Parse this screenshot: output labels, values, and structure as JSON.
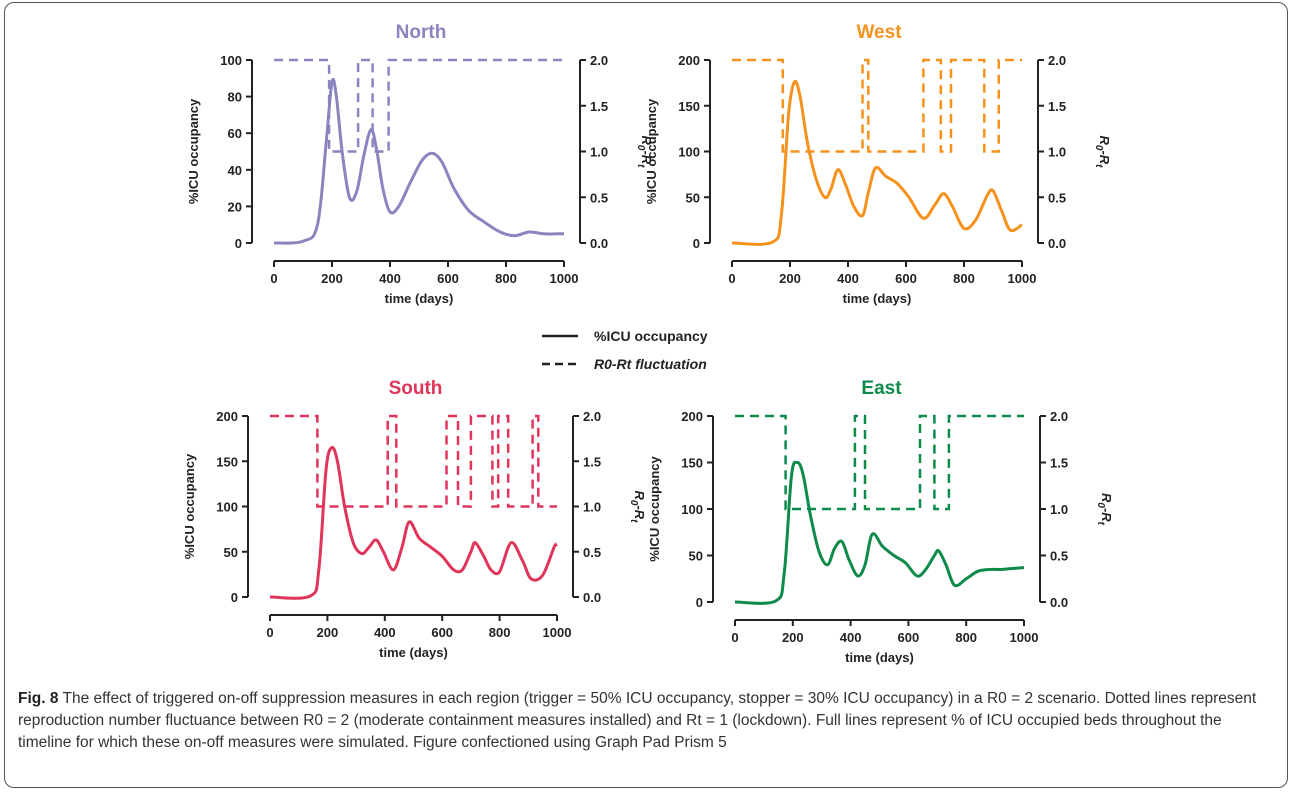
{
  "caption": {
    "figure_label": "Fig. 8",
    "text": "The effect of triggered on-off suppression measures in each region (trigger = 50% ICU occupancy, stopper = 30% ICU occupancy) in a R0 = 2 scenario. Dotted lines represent reproduction number fluctuance between R0 = 2 (moderate containment measures installed) and Rt = 1 (lockdown). Full lines represent % of ICU occupied beds throughout the timeline for which these on-off measures were simulated. Figure confectioned using Graph Pad Prism 5"
  },
  "legend": {
    "solid": "%ICU occupancy",
    "dashed": "R0-Rt fluctuation"
  },
  "chart_data": [
    {
      "type": "line",
      "title": "North",
      "color": "#8a84bf",
      "xlabel": "time (days)",
      "ylabel": "%ICU occupancy",
      "y2label": "R0-Rt",
      "xlim": [
        0,
        1000
      ],
      "ylim": [
        0,
        100
      ],
      "y2lim": [
        0,
        2
      ],
      "xticks": [
        0,
        200,
        400,
        600,
        800,
        1000
      ],
      "yticks": [
        0,
        20,
        40,
        60,
        80,
        100
      ],
      "y2ticks": [
        "0.0",
        "0.5",
        "1.0",
        "1.5",
        "2.0"
      ],
      "series": [
        {
          "axis": "left",
          "style": "solid",
          "x": [
            0,
            100,
            150,
            180,
            200,
            215,
            235,
            260,
            285,
            310,
            335,
            355,
            375,
            400,
            430,
            470,
            510,
            545,
            580,
            620,
            670,
            720,
            780,
            830,
            880,
            930,
            980,
            1000
          ],
          "y": [
            0,
            1,
            10,
            55,
            88,
            80,
            50,
            25,
            28,
            48,
            62,
            50,
            30,
            17,
            20,
            33,
            45,
            49,
            44,
            30,
            18,
            12,
            6,
            4,
            6,
            5,
            5,
            5
          ]
        },
        {
          "axis": "right",
          "style": "dashed",
          "x": [
            0,
            190,
            190,
            290,
            290,
            340,
            340,
            395,
            395,
            1000
          ],
          "y": [
            2,
            2,
            1,
            1,
            2,
            2,
            1,
            1,
            2,
            2
          ]
        }
      ]
    },
    {
      "type": "line",
      "title": "West",
      "color": "#f5921e",
      "xlabel": "time (days)",
      "ylabel": "%ICU occupancy",
      "y2label": "R0-Rt",
      "xlim": [
        0,
        1000
      ],
      "ylim": [
        0,
        200
      ],
      "y2lim": [
        0,
        2
      ],
      "xticks": [
        0,
        200,
        400,
        600,
        800,
        1000
      ],
      "yticks": [
        0,
        50,
        100,
        150,
        200
      ],
      "y2ticks": [
        "0.0",
        "0.5",
        "1.0",
        "1.5",
        "2.0"
      ],
      "series": [
        {
          "axis": "left",
          "style": "solid",
          "x": [
            0,
            140,
            170,
            195,
            215,
            235,
            260,
            290,
            320,
            340,
            365,
            390,
            420,
            450,
            470,
            495,
            530,
            570,
            610,
            660,
            700,
            730,
            760,
            800,
            840,
            880,
            900,
            930,
            960,
            1000
          ],
          "y": [
            0,
            1,
            30,
            140,
            176,
            160,
            110,
            70,
            50,
            58,
            80,
            65,
            40,
            30,
            55,
            82,
            73,
            65,
            50,
            27,
            42,
            54,
            40,
            16,
            25,
            52,
            57,
            35,
            14,
            20
          ]
        },
        {
          "axis": "right",
          "style": "dashed",
          "x": [
            0,
            175,
            175,
            450,
            450,
            470,
            470,
            660,
            660,
            720,
            720,
            755,
            755,
            870,
            870,
            920,
            920,
            1000
          ],
          "y": [
            2,
            2,
            1,
            1,
            2,
            2,
            1,
            1,
            2,
            2,
            1,
            1,
            2,
            2,
            1,
            1,
            2,
            2
          ]
        }
      ]
    },
    {
      "type": "line",
      "title": "South",
      "color": "#e0355b",
      "xlabel": "time (days)",
      "ylabel": "%ICU occupancy",
      "y2label": "R0-Rt",
      "xlim": [
        0,
        1000
      ],
      "ylim": [
        0,
        200
      ],
      "y2lim": [
        0,
        2
      ],
      "xticks": [
        0,
        200,
        400,
        600,
        800,
        1000
      ],
      "yticks": [
        0,
        50,
        100,
        150,
        200
      ],
      "y2ticks": [
        "0.0",
        "0.5",
        "1.0",
        "1.5",
        "2.0"
      ],
      "series": [
        {
          "axis": "left",
          "style": "solid",
          "x": [
            0,
            140,
            170,
            195,
            215,
            235,
            260,
            290,
            320,
            345,
            370,
            395,
            430,
            460,
            485,
            520,
            560,
            600,
            640,
            670,
            700,
            715,
            745,
            770,
            800,
            840,
            880,
            910,
            950,
            990,
            1000
          ],
          "y": [
            0,
            1,
            30,
            140,
            165,
            150,
            100,
            60,
            48,
            55,
            63,
            50,
            30,
            55,
            83,
            65,
            55,
            45,
            30,
            30,
            50,
            60,
            45,
            30,
            28,
            60,
            40,
            20,
            24,
            55,
            58
          ]
        },
        {
          "axis": "right",
          "style": "dashed",
          "x": [
            0,
            165,
            165,
            410,
            410,
            440,
            440,
            615,
            615,
            655,
            655,
            700,
            700,
            775,
            775,
            795,
            795,
            830,
            830,
            915,
            915,
            935,
            935,
            1000
          ],
          "y": [
            2,
            2,
            1,
            1,
            2,
            2,
            1,
            1,
            2,
            2,
            1,
            1,
            2,
            2,
            1,
            1,
            2,
            2,
            1,
            1,
            2,
            2,
            1,
            1
          ]
        }
      ]
    },
    {
      "type": "line",
      "title": "East",
      "color": "#0e8a4b",
      "xlabel": "time (days)",
      "ylabel": "%ICU occupancy",
      "y2label": "R0-Rt",
      "xlim": [
        0,
        1000
      ],
      "ylim": [
        0,
        200
      ],
      "y2lim": [
        0,
        2
      ],
      "xticks": [
        0,
        200,
        400,
        600,
        800,
        1000
      ],
      "yticks": [
        0,
        50,
        100,
        150,
        200
      ],
      "y2ticks": [
        "0.0",
        "0.5",
        "1.0",
        "1.5",
        "2.0"
      ],
      "series": [
        {
          "axis": "left",
          "style": "solid",
          "x": [
            0,
            140,
            170,
            195,
            215,
            235,
            260,
            290,
            320,
            345,
            370,
            395,
            425,
            450,
            475,
            510,
            550,
            590,
            630,
            660,
            690,
            705,
            730,
            760,
            800,
            840,
            880,
            920,
            960,
            1000
          ],
          "y": [
            0,
            1,
            30,
            135,
            150,
            138,
            95,
            55,
            40,
            58,
            65,
            45,
            28,
            40,
            73,
            60,
            50,
            42,
            28,
            35,
            50,
            55,
            40,
            18,
            25,
            33,
            35,
            35,
            36,
            37
          ]
        },
        {
          "axis": "right",
          "style": "dashed",
          "x": [
            0,
            175,
            175,
            415,
            415,
            450,
            450,
            640,
            640,
            690,
            690,
            740,
            740,
            1000
          ],
          "y": [
            2,
            2,
            1,
            1,
            2,
            2,
            1,
            1,
            2,
            2,
            1,
            1,
            2,
            2
          ]
        }
      ]
    }
  ]
}
